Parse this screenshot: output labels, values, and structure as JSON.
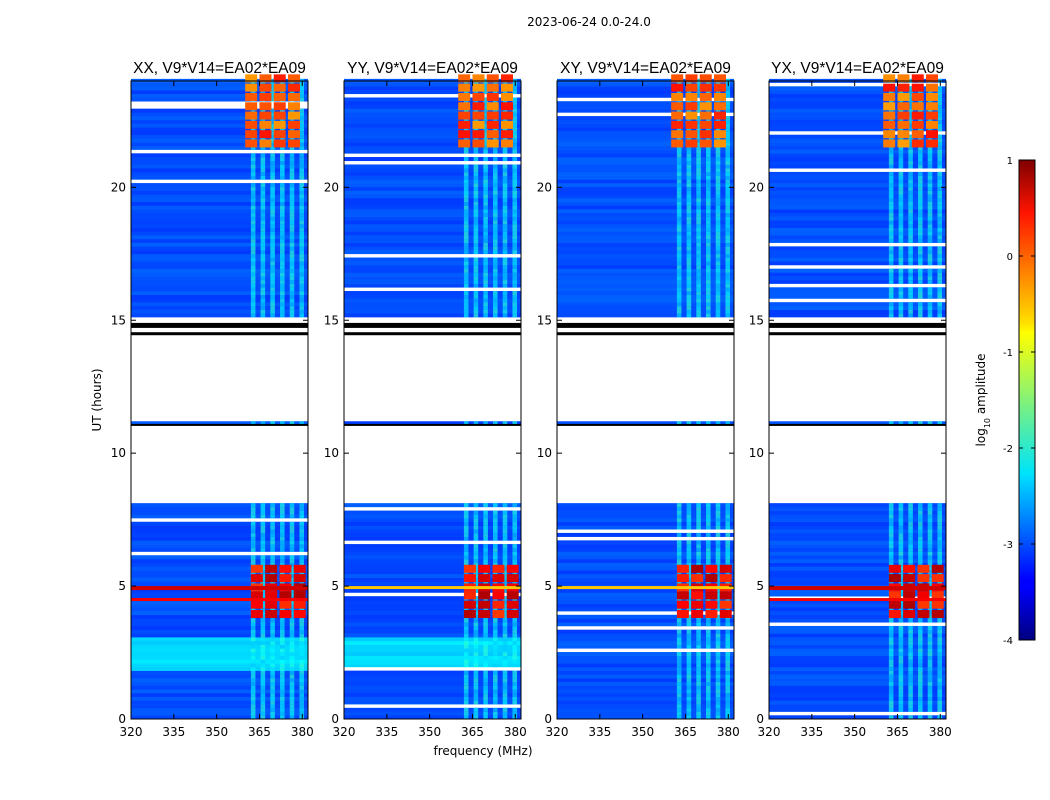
{
  "chart_data": {
    "type": "heatmap",
    "title": "2023-06-24 0.0-24.0",
    "xlabel": "frequency (MHz)",
    "ylabel": "UT (hours)",
    "xlim": [
      320,
      382
    ],
    "ylim": [
      0,
      24
    ],
    "xticks": [
      320,
      335,
      350,
      365,
      380
    ],
    "yticks": [
      0,
      5,
      10,
      15,
      20
    ],
    "panels": [
      {
        "name": "XX",
        "label": "XX, V9*V14=EA02*EA09"
      },
      {
        "name": "YY",
        "label": "YY, V9*V14=EA02*EA09"
      },
      {
        "name": "XY",
        "label": "XY, V9*V14=EA02*EA09"
      },
      {
        "name": "YX",
        "label": "YX, V9*V14=EA02*EA09"
      }
    ],
    "no_data_ranges_hours": [
      [
        8.0,
        11.05
      ],
      [
        11.1,
        14.5
      ]
    ],
    "bright_blocks": [
      {
        "ut_range": [
          21.5,
          24.0
        ],
        "freq_range": [
          360,
          380
        ],
        "approx_log10_amplitude": 0.0
      },
      {
        "ut_range": [
          4.8,
          5.5
        ],
        "freq_range": [
          362,
          380
        ],
        "approx_log10_amplitude": 0.5
      },
      {
        "ut_range": [
          3.8,
          4.5
        ],
        "freq_range": [
          362,
          380
        ],
        "approx_log10_amplitude": 0.5
      }
    ],
    "colorbar": {
      "label": "log10 amplitude",
      "min": -4,
      "max": 1,
      "ticks": [
        1,
        0,
        -1,
        -2,
        -3,
        -4
      ],
      "colormap": "jet"
    }
  }
}
